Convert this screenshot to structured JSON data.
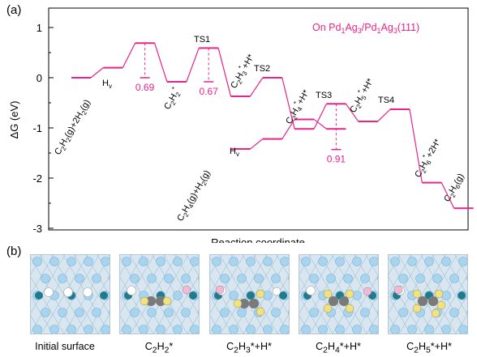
{
  "panel_a": {
    "label": "(a)",
    "legend": "On Pd1Ag3/Pd1Ag3(111)",
    "colors": {
      "energy": "#e8238a",
      "axis": "#000000"
    }
  },
  "panel_b": {
    "label": "(b)",
    "captions": [
      "Initial surface",
      "C2H2*",
      "C2H3*+H*",
      "C2H4*+H*",
      "C2H5*+H*"
    ],
    "colors": {
      "surface": "#d9e6ef",
      "ag": "#a9d4ef",
      "pd": "#1f7a8c",
      "c": "#7a7a7a",
      "h_ads": "#ffffff",
      "h_yellow": "#f2e27a",
      "h_pink": "#f3b8d6"
    }
  },
  "chart_data": {
    "type": "line",
    "title": "",
    "xlabel": "Reaction coordinate",
    "ylabel": "ΔG (eV)",
    "ylim": [
      -3,
      1.3
    ],
    "yticks": [
      -3,
      -2,
      -1,
      0,
      1
    ],
    "series": [
      {
        "name": "main",
        "levels": [
          {
            "pos": 1,
            "y": 0.0
          },
          {
            "pos": 2,
            "y": 0.2
          },
          {
            "pos": 3,
            "y": 0.69
          },
          {
            "pos": 4,
            "y": -0.08
          },
          {
            "pos": 5,
            "y": 0.59
          },
          {
            "pos": 6,
            "y": -0.37
          },
          {
            "pos": 7,
            "y": 0.0
          },
          {
            "pos": 8,
            "y": -1.02
          },
          {
            "pos": 9,
            "y": -0.52
          },
          {
            "pos": 10,
            "y": -0.87
          },
          {
            "pos": 11,
            "y": -0.63
          },
          {
            "pos": 12,
            "y": -2.09
          },
          {
            "pos": 13,
            "y": -2.6
          }
        ]
      },
      {
        "name": "ethylene",
        "levels": [
          {
            "pos": 6,
            "y": -1.42
          },
          {
            "pos": 7,
            "y": -1.22
          },
          {
            "pos": 8,
            "y": -0.83
          },
          {
            "pos": 9,
            "y": -1.02
          }
        ]
      }
    ],
    "barriers": [
      {
        "pos": 3,
        "from": 0.69,
        "to": 0.0,
        "value": "0.69"
      },
      {
        "pos": 5,
        "from": 0.59,
        "to": -0.08,
        "value": "0.67"
      },
      {
        "pos": 9,
        "from": -0.52,
        "to": -1.43,
        "value": "0.91"
      }
    ],
    "annotations": [
      {
        "id": "c2h2g",
        "text": "C2H2(g)+2H2(g)"
      },
      {
        "id": "hv1",
        "text": "Hv"
      },
      {
        "id": "c2h2ads",
        "text": "C2H2*"
      },
      {
        "id": "ts1",
        "text": "TS1"
      },
      {
        "id": "c2h3h",
        "text": "C2H3*+H*"
      },
      {
        "id": "ts2",
        "text": "TS2"
      },
      {
        "id": "c2h4h",
        "text": "C2H4*+H*"
      },
      {
        "id": "ts3",
        "text": "TS3"
      },
      {
        "id": "c2h5h",
        "text": "C2H5*+H*"
      },
      {
        "id": "ts4",
        "text": "TS4"
      },
      {
        "id": "c2h62h",
        "text": "C2H6*+2H*"
      },
      {
        "id": "c2h6g",
        "text": "C2H6(g)"
      },
      {
        "id": "c2h4g",
        "text": "C2H4(g)+H2(g)"
      },
      {
        "id": "hv2",
        "text": "Hv"
      }
    ]
  }
}
